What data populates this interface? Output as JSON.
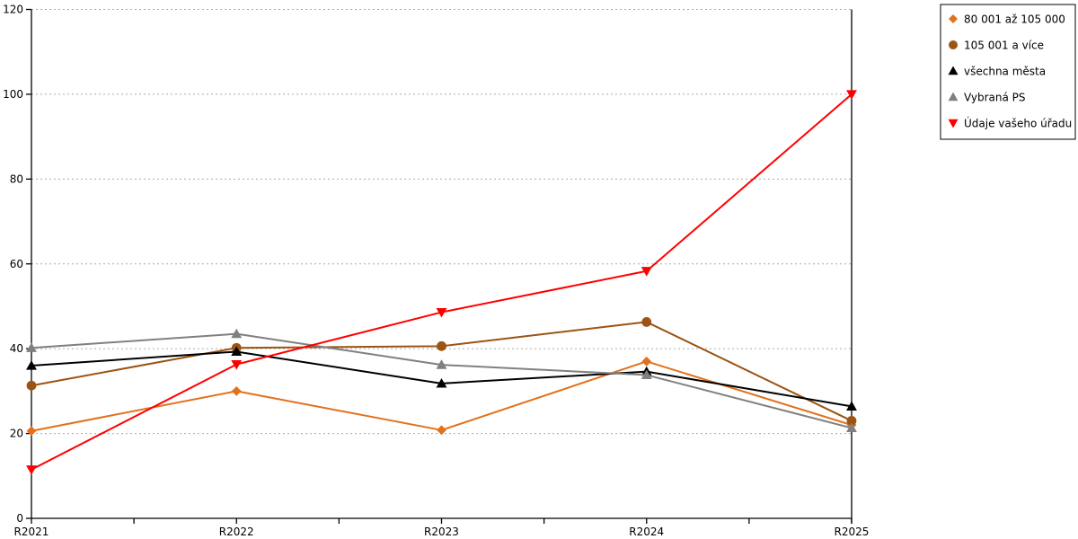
{
  "chart_data": {
    "type": "line",
    "title": "",
    "xlabel": "",
    "ylabel": "",
    "categories": [
      "R2021",
      "R2022",
      "R2023",
      "R2024",
      "R2025"
    ],
    "ylim": [
      0,
      120
    ],
    "y_ticks": [
      0,
      20,
      40,
      60,
      80,
      100,
      120
    ],
    "grid": "horizontal-dotted",
    "grid_color": "#aaaaaa",
    "axis_color": "#000000",
    "legend_position": "top-right",
    "series": [
      {
        "name": "80 001 až 105 000",
        "color": "#E2711D",
        "marker": "diamond",
        "values": [
          20.6,
          30.0,
          20.8,
          37.0,
          22.0
        ]
      },
      {
        "name": "105 001 a více",
        "color": "#9B5413",
        "marker": "circle",
        "values": [
          31.3,
          40.2,
          40.6,
          46.3,
          23.0
        ]
      },
      {
        "name": "všechna města",
        "color": "#000000",
        "marker": "triangle-up",
        "values": [
          36.0,
          39.3,
          31.8,
          34.6,
          26.4
        ]
      },
      {
        "name": "Vybraná PS",
        "color": "#808080",
        "marker": "triangle-up",
        "values": [
          40.2,
          43.5,
          36.2,
          33.8,
          21.3
        ]
      },
      {
        "name": "Údaje vašeho úřadu",
        "color": "#FF0000",
        "marker": "triangle-down",
        "values": [
          11.5,
          36.3,
          48.6,
          58.3,
          100.0
        ]
      }
    ]
  }
}
